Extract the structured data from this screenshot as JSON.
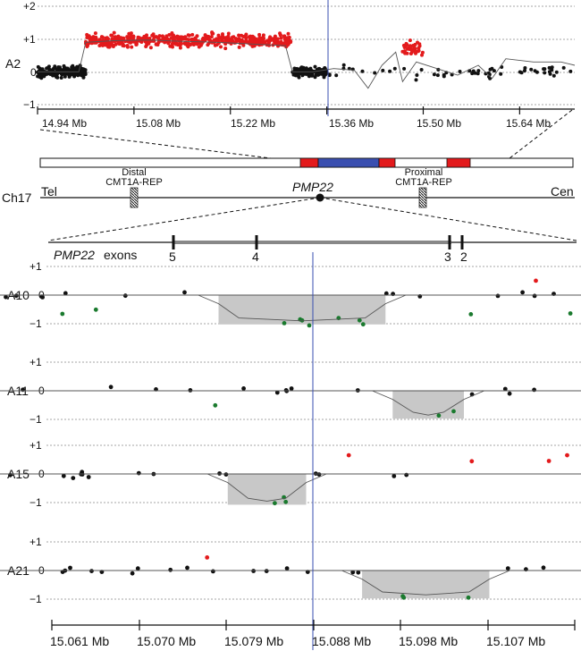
{
  "colors": {
    "gain": "#e31a1c",
    "loss": "#1a7a2e",
    "normal": "#111111",
    "shade": "#c8c8c8",
    "duplication_bar": "#e31a1c",
    "pmp22_region": "#3a4fb0",
    "marker_line": "#3a4fb0"
  },
  "ideogram": {
    "chromosome": "Ch17",
    "tel": "Tel",
    "cen": "Cen",
    "gene": "PMP22",
    "distal_rep": [
      "Distal",
      "CMT1A-REP"
    ],
    "proximal_rep": [
      "Proximal",
      "CMT1A-REP"
    ],
    "exons_label_gene": "PMP22",
    "exons_label_rest": "exons",
    "exons": [
      "5",
      "4",
      "3",
      "2"
    ]
  },
  "chart_data": [
    {
      "type": "scatter",
      "name": "A2",
      "xlabel_unit": "Mb",
      "x_ticks": [
        "14.94 Mb",
        "15.08 Mb",
        "15.22 Mb",
        "15.36 Mb",
        "15.50 Mb",
        "15.64 Mb"
      ],
      "y_ticks": [
        "+2",
        "+1",
        "0",
        "−1"
      ],
      "ylim": [
        -1,
        2
      ],
      "xlim": [
        14.94,
        15.72
      ],
      "marker_x": 15.35,
      "gain_region": [
        15.01,
        15.31
      ],
      "gain_value": 0.95,
      "segments": [
        [
          14.94,
          15.01,
          0
        ],
        [
          15.01,
          15.31,
          0.95
        ],
        [
          15.31,
          15.72,
          0
        ]
      ]
    },
    {
      "type": "scatter",
      "name": "A10",
      "x_ticks": [
        "15.061 Mb",
        "15.070 Mb",
        "15.079 Mb",
        "15.088 Mb",
        "15.098 Mb",
        "15.107 Mb"
      ],
      "y_ticks": [
        "+1",
        "0",
        "−1"
      ],
      "ylim": [
        -1.3,
        1.2
      ],
      "xlim": [
        15.061,
        15.1135
      ],
      "marker_x": 15.0876,
      "deletion": [
        15.0779,
        15.0943
      ],
      "deletion_value": -0.9
    },
    {
      "type": "scatter",
      "name": "A11",
      "x_ticks": [
        "15.061 Mb",
        "15.070 Mb",
        "15.079 Mb",
        "15.088 Mb",
        "15.098 Mb",
        "15.107 Mb"
      ],
      "y_ticks": [
        "+1",
        "0",
        "−1"
      ],
      "ylim": [
        -1.3,
        1.2
      ],
      "xlim": [
        15.061,
        15.1135
      ],
      "marker_x": 15.0876,
      "deletion": [
        15.095,
        15.102
      ],
      "deletion_value": -0.85
    },
    {
      "type": "scatter",
      "name": "A15",
      "x_ticks": [
        "15.061 Mb",
        "15.070 Mb",
        "15.079 Mb",
        "15.088 Mb",
        "15.098 Mb",
        "15.107 Mb"
      ],
      "y_ticks": [
        "+1",
        "0",
        "−1"
      ],
      "ylim": [
        -1.3,
        1.2
      ],
      "xlim": [
        15.061,
        15.1135
      ],
      "marker_x": 15.0876,
      "deletion": [
        15.0788,
        15.0865
      ],
      "deletion_value": -0.95
    },
    {
      "type": "scatter",
      "name": "A21",
      "x_ticks": [
        "15.061 Mb",
        "15.070 Mb",
        "15.079 Mb",
        "15.088 Mb",
        "15.098 Mb",
        "15.107 Mb"
      ],
      "y_ticks": [
        "+1",
        "0",
        "−1"
      ],
      "ylim": [
        -1.3,
        1.2
      ],
      "xlim": [
        15.061,
        15.1135
      ],
      "marker_x": 15.0876,
      "deletion": [
        15.092,
        15.1045
      ],
      "deletion_value": -0.85
    }
  ]
}
